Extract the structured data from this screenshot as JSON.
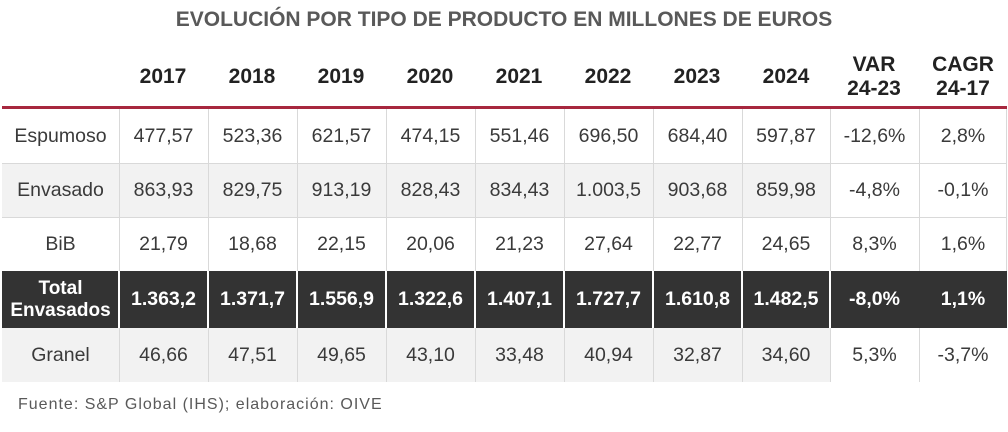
{
  "title": "EVOLUCIÓN POR TIPO DE PRODUCTO EN MILLONES DE EUROS",
  "headers": {
    "years": [
      "2017",
      "2018",
      "2019",
      "2020",
      "2021",
      "2022",
      "2023",
      "2024"
    ],
    "var_line1": "VAR",
    "var_line2": "24-23",
    "cagr_line1": "CAGR",
    "cagr_line2": "24-17"
  },
  "rows": [
    {
      "label": "Espumoso",
      "values": [
        "477,57",
        "523,36",
        "621,57",
        "474,15",
        "551,46",
        "696,50",
        "684,40",
        "597,87"
      ],
      "var": "-12,6%",
      "cagr": "2,8%"
    },
    {
      "label": "Envasado",
      "values": [
        "863,93",
        "829,75",
        "913,19",
        "828,43",
        "834,43",
        "1.003,5",
        "903,68",
        "859,98"
      ],
      "var": "-4,8%",
      "cagr": "-0,1%"
    },
    {
      "label": "BiB",
      "values": [
        "21,79",
        "18,68",
        "22,15",
        "20,06",
        "21,23",
        "27,64",
        "22,77",
        "24,65"
      ],
      "var": "8,3%",
      "cagr": "1,6%"
    },
    {
      "label_line1": "Total",
      "label_line2": "Envasados",
      "values": [
        "1.363,2",
        "1.371,7",
        "1.556,9",
        "1.322,6",
        "1.407,1",
        "1.727,7",
        "1.610,8",
        "1.482,5"
      ],
      "var": "-8,0%",
      "cagr": "1,1%"
    },
    {
      "label": "Granel",
      "values": [
        "46,66",
        "47,51",
        "49,65",
        "43,10",
        "33,48",
        "40,94",
        "32,87",
        "34,60"
      ],
      "var": "5,3%",
      "cagr": "-3,7%"
    }
  ],
  "footer": "Fuente: S&P Global (IHS); elaboración: OIVE",
  "colors": {
    "accent_line": "#a7273e",
    "total_row_bg": "#333333",
    "alt_row_bg": "#f2f2f2"
  }
}
